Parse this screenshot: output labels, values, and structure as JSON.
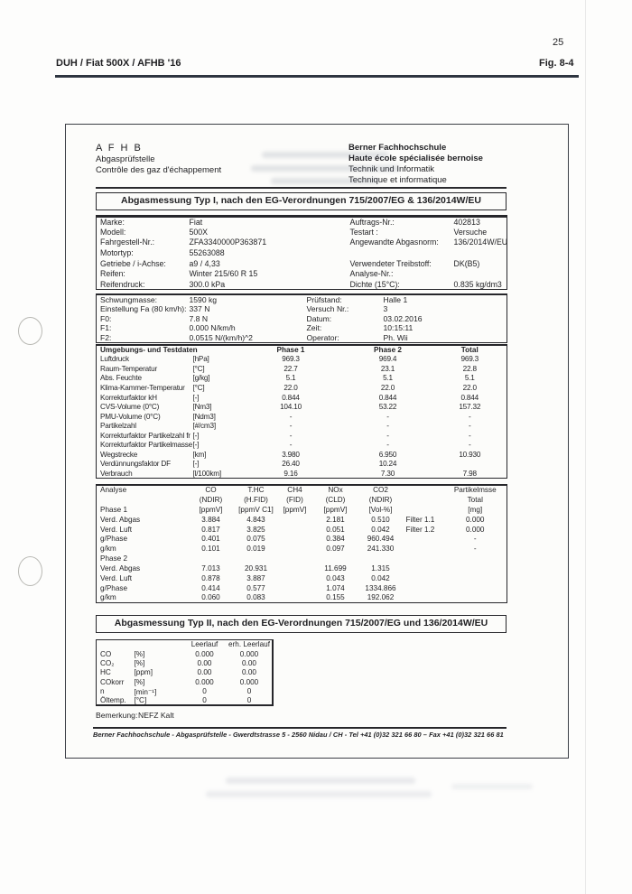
{
  "page": {
    "number": "25",
    "header_left": "DUH / Fiat 500X / AFHB '16",
    "header_right": "Fig. 8-4"
  },
  "letterhead": {
    "org_abbr": "A F H B",
    "org_line2": "Abgasprüfstelle",
    "org_line3": "Contrôle des gaz d'échappement",
    "school_line1": "Berner Fachhochschule",
    "school_line2": "Haute école spécialisée bernoise",
    "school_line3": "Technik und Informatik",
    "school_line4": "Technique et informatique"
  },
  "section1": {
    "title": "Abgasmessung Typ I, nach den EG-Verordnungen 715/2007/EG & 136/2014W/EU"
  },
  "vehicle_info": {
    "rows": [
      [
        "Marke:",
        "Fiat",
        "Auftrags-Nr.:",
        "402813"
      ],
      [
        "Modell:",
        "500X",
        "Testart :",
        "Versuche"
      ],
      [
        "Fahrgestell-Nr.:",
        "ZFA3340000P363871",
        "Angewandte Abgasnorm:",
        "136/2014W/EU"
      ],
      [
        "Motortyp:",
        "55263088",
        "",
        ""
      ],
      [
        "Getriebe / i-Achse:",
        "a9 / 4,33",
        "Verwendeter Treibstoff:",
        "DK(B5)"
      ],
      [
        "Reifen:",
        "Winter 215/60 R 15",
        "Analyse-Nr.:",
        ""
      ],
      [
        "Reifendruck:",
        "300.0 kPa",
        "Dichte (15°C):",
        "0.835 kg/dm3"
      ]
    ]
  },
  "dyno_info": {
    "rows": [
      [
        "Schwungmasse:",
        "1590 kg",
        "Prüfstand:",
        "Halle 1"
      ],
      [
        "Einstellung Fa (80 km/h):",
        "337 N",
        "Versuch Nr.:",
        "3"
      ],
      [
        "F0:",
        "7.8 N",
        "Datum:",
        "03.02.2016"
      ],
      [
        "F1:",
        "0.000 N/km/h",
        "Zeit:",
        "10:15:11"
      ],
      [
        "F2:",
        "0.0515 N/(km/h)^2",
        "Operator:",
        "Ph. Wii"
      ]
    ]
  },
  "environment": {
    "rows": [
      [
        "Umgebungs- und Testdaten",
        "",
        "Phase 1",
        "Phase 2",
        "Total"
      ],
      [
        "Luftdruck",
        "[hPa]",
        "969.3",
        "969.4",
        "969.3"
      ],
      [
        "Raum-Temperatur",
        "[°C]",
        "22.7",
        "23.1",
        "22.8"
      ],
      [
        "Abs. Feuchte",
        "[g/kg]",
        "5.1",
        "5.1",
        "5.1"
      ],
      [
        "Klima-Kammer-Temperatur",
        "[°C]",
        "22.0",
        "22.0",
        "22.0"
      ],
      [
        "Korrekturfaktor kH",
        "[-]",
        "0.844",
        "0.844",
        "0.844"
      ],
      [
        "CVS-Volume (0°C)",
        "[Nm3]",
        "104.10",
        "53.22",
        "157.32"
      ],
      [
        "PMU-Volume (0°C)",
        "[Ndm3]",
        "-",
        "-",
        "-"
      ],
      [
        "Partikelzahl",
        "[#/cm3]",
        "-",
        "-",
        "-"
      ],
      [
        "Korrekturfaktor Partikelzahl fr",
        "[-]",
        "-",
        "-",
        "-"
      ],
      [
        "Korrekturfaktor Partikelmasse",
        "[-]",
        "-",
        "-",
        "-"
      ],
      [
        "Wegstrecke",
        "[km]",
        "3.980",
        "6.950",
        "10.930"
      ],
      [
        "Verdünnungsfaktor DF",
        "[-]",
        "26.40",
        "10.24",
        ""
      ],
      [
        "Verbrauch",
        "[l/100km]",
        "9.16",
        "7.30",
        "7.98"
      ]
    ]
  },
  "analysis": {
    "rows": [
      [
        "Analyse",
        "CO",
        "T.HC",
        "CH4",
        "NOx",
        "CO2",
        "",
        "Partikelmsse"
      ],
      [
        "",
        "(NDIR)",
        "(H.FID)",
        "(FID)",
        "(CLD)",
        "(NDIR)",
        "",
        "Total"
      ],
      [
        "Phase 1",
        "[ppmV]",
        "[ppmV C1]",
        "[ppmV]",
        "[ppmV]",
        "[Vol-%]",
        "",
        "[mg]"
      ],
      [
        "Verd. Abgas",
        "3.884",
        "4.843",
        "",
        "2.181",
        "0.510",
        "Filter 1.1",
        "0.000"
      ],
      [
        "Verd. Luft",
        "0.817",
        "3.825",
        "",
        "0.051",
        "0.042",
        "Filter 1.2",
        "0.000"
      ],
      [
        "g/Phase",
        "0.401",
        "0.075",
        "",
        "0.384",
        "960.494",
        "",
        "-"
      ],
      [
        "g/km",
        "0.101",
        "0.019",
        "",
        "0.097",
        "241.330",
        "",
        "-"
      ],
      [
        "Phase 2",
        "",
        "",
        "",
        "",
        "",
        "",
        ""
      ],
      [
        "Verd. Abgas",
        "7.013",
        "20.931",
        "",
        "11.699",
        "1.315",
        "",
        ""
      ],
      [
        "Verd. Luft",
        "0.878",
        "3.887",
        "",
        "0.043",
        "0.042",
        "",
        ""
      ],
      [
        "g/Phase",
        "0.414",
        "0.577",
        "",
        "1.074",
        "1334.866",
        "",
        ""
      ],
      [
        "g/km",
        "0.060",
        "0.083",
        "",
        "0.155",
        "192.062",
        "",
        ""
      ]
    ]
  },
  "section2": {
    "title": "Abgasmessung Typ II, nach den EG-Verordnungen 715/2007/EG und 136/2014W/EU"
  },
  "typ2": {
    "rows": [
      [
        "",
        "",
        "Leerlauf",
        "erh. Leerlauf"
      ],
      [
        "CO",
        "[%]",
        "0.000",
        "0.000"
      ],
      [
        "CO₂",
        "[%]",
        "0.00",
        "0.00"
      ],
      [
        "HC",
        "[ppm]",
        "0.00",
        "0.00"
      ],
      [
        "COkorr",
        "[%]",
        "0.000",
        "0.000"
      ],
      [
        "n",
        "[min⁻¹]",
        "0",
        "0"
      ],
      [
        "Öltemp.",
        "[°C]",
        "0",
        "0"
      ]
    ]
  },
  "remark": {
    "label": "Bemerkung:",
    "value": "NEFZ Kalt"
  },
  "footer": {
    "text": "Berner Fachhochschule  -  Abgasprüfstelle  -  Gwerdtstrasse 5  -  2560 Nidau / CH  -  Tel +41 (0)32 321 66 80 – Fax +41 (0)32 321 66 81"
  },
  "colors": {
    "ink": "#1f1f22",
    "rule": "#2e3540",
    "page": "#fdfdfc"
  }
}
